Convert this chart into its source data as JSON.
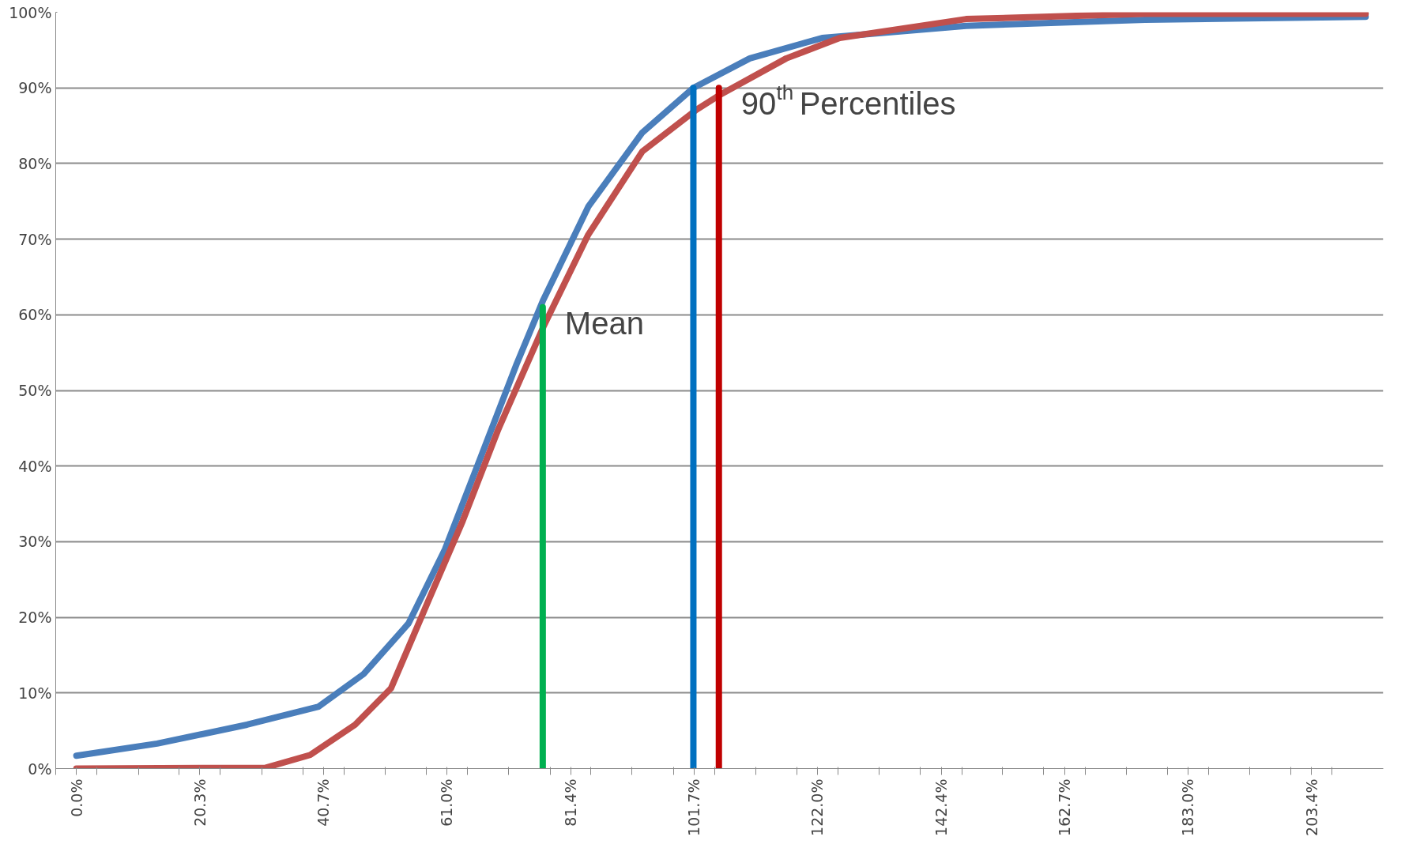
{
  "chart_data": {
    "type": "line",
    "series": [
      {
        "color": "#4a7ebb",
        "x": [
          0,
          13.3,
          28.1,
          39.9,
          47.3,
          54.7,
          60.7,
          66.6,
          72.5,
          76.9,
          84.3,
          93.2,
          101.6,
          110.9,
          122.8,
          146.5,
          176.0,
          212.3
        ],
        "values": [
          1.7,
          3.3,
          5.8,
          8.2,
          12.5,
          19.2,
          29,
          41.2,
          53.5,
          62,
          74.3,
          84.1,
          90,
          93.9,
          96.6,
          98.2,
          99,
          99.4
        ]
      },
      {
        "color": "#c0504d",
        "x": [
          0,
          31.1,
          38.5,
          45.9,
          51.8,
          57.7,
          63.6,
          69.5,
          76.9,
          84.3,
          93.2,
          102.1,
          105.8,
          116.9,
          125.7,
          146.5,
          176.0,
          212.3
        ],
        "values": [
          0,
          0.1,
          1.8,
          5.8,
          10.6,
          21.7,
          32.7,
          44.9,
          58.4,
          70.6,
          81.6,
          87.1,
          89,
          93.9,
          96.6,
          99.1,
          99.8,
          99.8
        ]
      },
      {
        "color": "#00b050",
        "x": [
          76.8,
          76.8
        ],
        "values": [
          0,
          61
        ]
      },
      {
        "color": "#0070c0",
        "x": [
          101.6,
          101.6
        ],
        "values": [
          0,
          90
        ]
      },
      {
        "color": "#c00000",
        "x": [
          105.8,
          105.8
        ],
        "values": [
          0,
          90
        ]
      }
    ],
    "annotations": [
      {
        "text": "Mean",
        "x": 76.8,
        "y": 61
      },
      {
        "text": "90$^{th}$ Percentiles",
        "x": 105.8,
        "y": 90
      }
    ],
    "xlim": [
      -3.4,
      215.2
    ],
    "xticks": [
      {
        "value": -3.4,
        "label": null
      },
      {
        "value": 0,
        "label": "0.0%"
      },
      {
        "value": 3.4,
        "label": null
      },
      {
        "value": 10.2,
        "label": null
      },
      {
        "value": 16.9,
        "label": null
      },
      {
        "value": 20.3,
        "label": "20.3%"
      },
      {
        "value": 23.7,
        "label": null
      },
      {
        "value": 30.5,
        "label": null
      },
      {
        "value": 37.3,
        "label": null
      },
      {
        "value": 40.7,
        "label": "40.7%"
      },
      {
        "value": 44.1,
        "label": null
      },
      {
        "value": 50.8,
        "label": null
      },
      {
        "value": 57.6,
        "label": null
      },
      {
        "value": 61.0,
        "label": "61.0%"
      },
      {
        "value": 64.4,
        "label": null
      },
      {
        "value": 71.2,
        "label": null
      },
      {
        "value": 78.0,
        "label": null
      },
      {
        "value": 81.4,
        "label": "81.4%"
      },
      {
        "value": 84.7,
        "label": null
      },
      {
        "value": 91.5,
        "label": null
      },
      {
        "value": 98.3,
        "label": null
      },
      {
        "value": 101.7,
        "label": "101.7%"
      },
      {
        "value": 105.1,
        "label": null
      },
      {
        "value": 111.9,
        "label": null
      },
      {
        "value": 118.6,
        "label": null
      },
      {
        "value": 122.0,
        "label": "122.0%"
      },
      {
        "value": 125.4,
        "label": null
      },
      {
        "value": 132.2,
        "label": null
      },
      {
        "value": 139.0,
        "label": null
      },
      {
        "value": 142.4,
        "label": "142.4%"
      },
      {
        "value": 145.8,
        "label": null
      },
      {
        "value": 152.5,
        "label": null
      },
      {
        "value": 159.3,
        "label": null
      },
      {
        "value": 162.7,
        "label": "162.7%"
      },
      {
        "value": 166.1,
        "label": null
      },
      {
        "value": 172.9,
        "label": null
      },
      {
        "value": 179.7,
        "label": null
      },
      {
        "value": 183.0,
        "label": "183.0%"
      },
      {
        "value": 186.4,
        "label": null
      },
      {
        "value": 193.2,
        "label": null
      },
      {
        "value": 200.0,
        "label": null
      },
      {
        "value": 203.4,
        "label": "203.4%"
      },
      {
        "value": 206.8,
        "label": null
      }
    ],
    "ylim": [
      0,
      100
    ],
    "yticks": [
      {
        "value": 0,
        "label": "0%"
      },
      {
        "value": 10,
        "label": "10%"
      },
      {
        "value": 20,
        "label": "20%"
      },
      {
        "value": 30,
        "label": "30%"
      },
      {
        "value": 40,
        "label": "40%"
      },
      {
        "value": 50,
        "label": "50%"
      },
      {
        "value": 60,
        "label": "60%"
      },
      {
        "value": 70,
        "label": "70%"
      },
      {
        "value": 80,
        "label": "80%"
      },
      {
        "value": 90,
        "label": "90%"
      },
      {
        "value": 100,
        "label": "100%"
      }
    ],
    "grid": "y",
    "marker": "none",
    "line_style": "solid"
  }
}
